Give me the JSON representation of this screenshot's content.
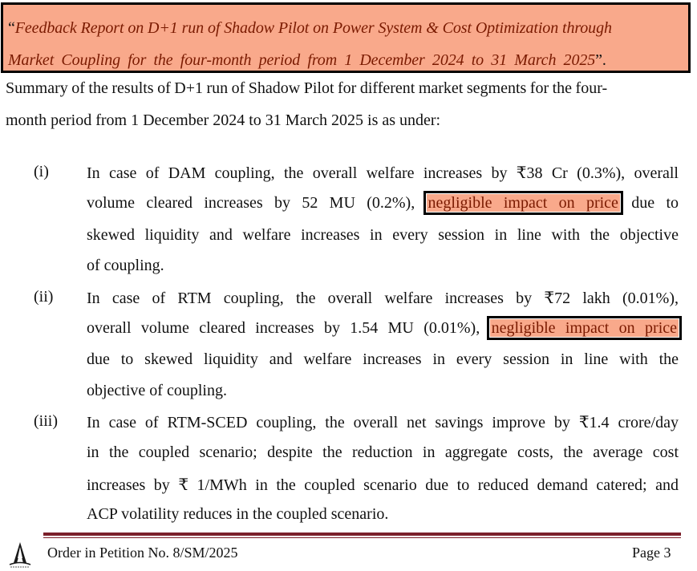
{
  "title_box": {
    "open_quote": "“",
    "line1": "Feedback Report on D+1 run of Shadow Pilot on Power System & Cost Optimization through",
    "line2": "Market Coupling for the four-month period from 1 December 2024 to 31 March 2025",
    "close_quote": "”."
  },
  "summary": {
    "line1": "Summary of the results of D+1 run of Shadow Pilot for different market segments for the four-",
    "line2": "month period from 1 December 2024 to 31 March 2025 is as under:"
  },
  "items": [
    {
      "number": "(i)",
      "line1": "In case of DAM coupling, the overall welfare increases by ₹38 Cr (0.3%), overall",
      "line2_pre": "volume cleared increases by 52 MU (0.2%),",
      "line2_highlight": "negligible impact on price",
      "line2_post": "due to",
      "line3": "skewed liquidity and welfare increases in every session in line with the objective",
      "line4": "of coupling."
    },
    {
      "number": "(ii)",
      "line1": "In case of RTM coupling, the overall welfare increases by ₹72 lakh (0.01%),",
      "line2_pre": "overall volume cleared increases by 1.54 MU (0.01%),",
      "line2_highlight": "negligible impact on price",
      "line3": "due to skewed liquidity and welfare increases in every session in line with the",
      "line4": "objective of coupling."
    },
    {
      "number": "(iii)",
      "line1": "In case of RTM-SCED coupling, the overall net savings improve by ₹1.4 crore/day",
      "line2": "in the coupled scenario; despite the reduction in aggregate costs, the average cost",
      "line3": "increases by ₹ 1/MWh in the coupled scenario due to reduced demand catered; and",
      "line4": "ACP volatility reduces in the coupled scenario."
    }
  ],
  "footer": {
    "left": "Order in Petition No. 8/SM/2025",
    "right": "Page 3"
  },
  "colors": {
    "highlight_fill": "#f9a98b",
    "highlight_text": "#7a1a00",
    "footer_rule": "#7b1f2a"
  }
}
